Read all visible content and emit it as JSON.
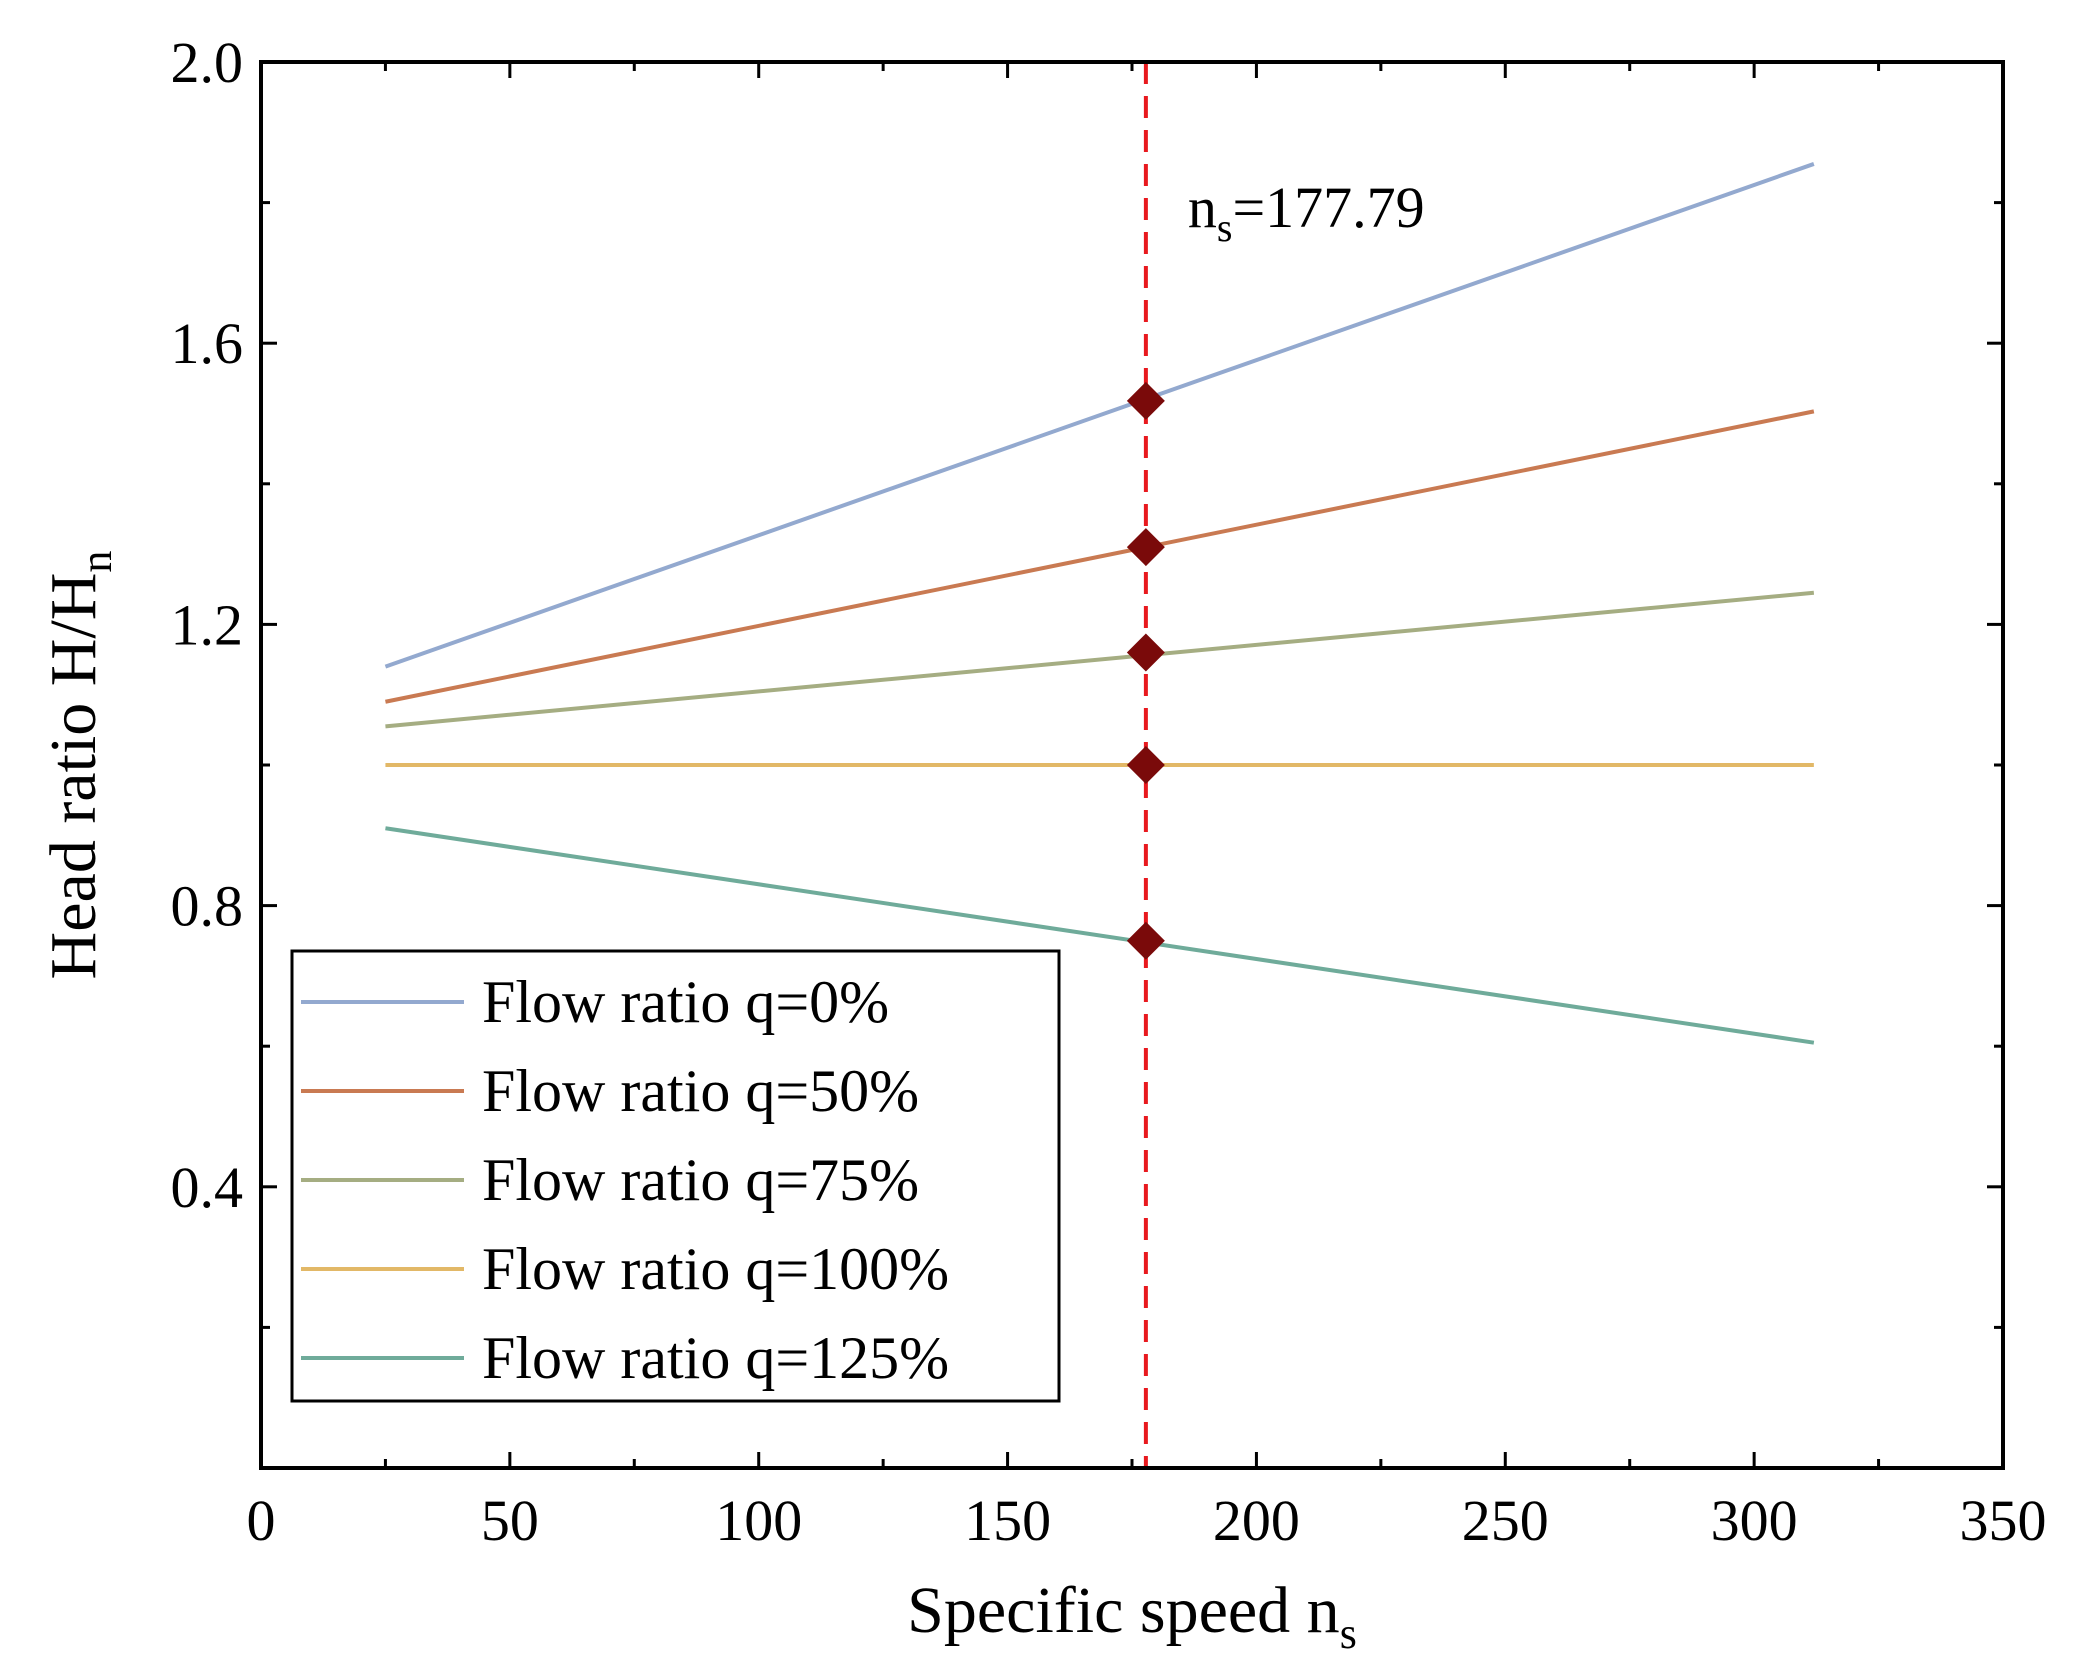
{
  "chart_data": {
    "type": "line",
    "xlabel_main": "Specific speed n",
    "xlabel_sub": "s",
    "ylabel_main": "Head ratio H/H",
    "ylabel_sub": "n",
    "xlim": [
      0,
      350
    ],
    "ylim": [
      0,
      2.0
    ],
    "x_ticks": [
      0,
      50,
      100,
      150,
      200,
      250,
      300,
      350
    ],
    "x_tick_labels": [
      "0",
      "50",
      "100",
      "150",
      "200",
      "250",
      "300",
      "350"
    ],
    "y_ticks": [
      0.4,
      0.8,
      1.2,
      1.6,
      2.0
    ],
    "y_tick_labels": [
      "0.4",
      "0.8",
      "1.2",
      "1.6",
      "2.0"
    ],
    "grid": false,
    "legend_position": "bottom-left",
    "x_range": [
      25,
      312
    ],
    "series": [
      {
        "name": "Flow ratio q=0%",
        "color": "#93a9cf",
        "y": [
          1.14,
          1.855
        ]
      },
      {
        "name": "Flow ratio q=50%",
        "color": "#c97a52",
        "y": [
          1.09,
          1.503
        ]
      },
      {
        "name": "Flow ratio q=75%",
        "color": "#a5ad82",
        "y": [
          1.055,
          1.245
        ]
      },
      {
        "name": "Flow ratio q=100%",
        "color": "#e2b867",
        "y": [
          1.0,
          1.0
        ]
      },
      {
        "name": "Flow ratio q=125%",
        "color": "#6fab9a",
        "y": [
          0.91,
          0.605
        ]
      }
    ],
    "reference_line": {
      "x": 177.79,
      "color": "#e8191e",
      "style": "dashed"
    },
    "annotation": {
      "main": "n",
      "sub": "s",
      "rest": "=177.79"
    },
    "markers": {
      "x": 177.79,
      "y": [
        1.518,
        1.31,
        1.16,
        1.0,
        0.75
      ],
      "color": "#7a0a0a",
      "shape": "diamond"
    }
  }
}
